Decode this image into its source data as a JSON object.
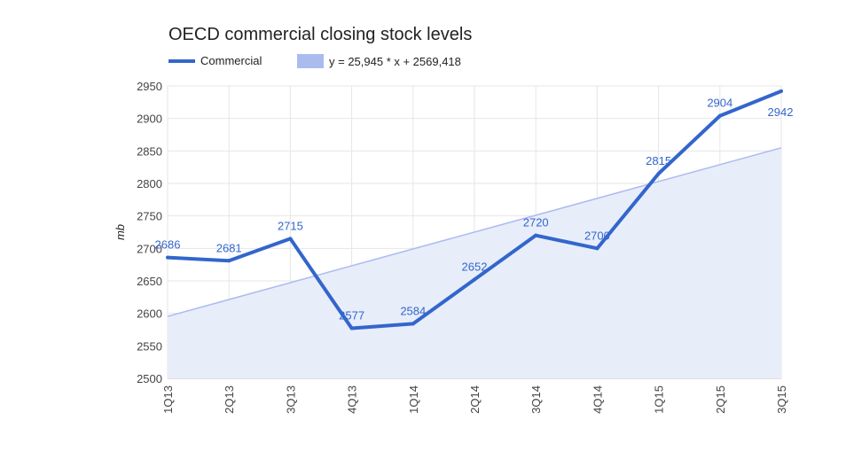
{
  "chart_data": {
    "type": "line",
    "title": "OECD commercial closing stock levels",
    "xlabel": "",
    "ylabel": "mb",
    "categories": [
      "1Q13",
      "2Q13",
      "3Q13",
      "4Q13",
      "1Q14",
      "2Q14",
      "3Q14",
      "4Q14",
      "1Q15",
      "2Q15",
      "3Q15"
    ],
    "series": [
      {
        "name": "Commercial",
        "values": [
          2686,
          2681,
          2715,
          2577,
          2584,
          2652,
          2720,
          2700,
          2815,
          2904,
          2942
        ],
        "labels": [
          "2686",
          "2681",
          "2715",
          "2577",
          "2584",
          "2652",
          "2720",
          "2700",
          "2815",
          "2904",
          "2942"
        ],
        "color": "#3366cc"
      }
    ],
    "trendline": {
      "label": "y = 25,945 * x + 2569,418",
      "slope": 25.945,
      "intercept": 2569.418,
      "color": "#aabbee"
    },
    "ylim": [
      2500,
      2950
    ],
    "yticks": [
      "2500",
      "2550",
      "2600",
      "2650",
      "2700",
      "2750",
      "2800",
      "2850",
      "2900",
      "2950"
    ],
    "grid": true,
    "legend_position": "top-left",
    "area_fill": "#e8edfa",
    "label_color": "#3366cc"
  }
}
